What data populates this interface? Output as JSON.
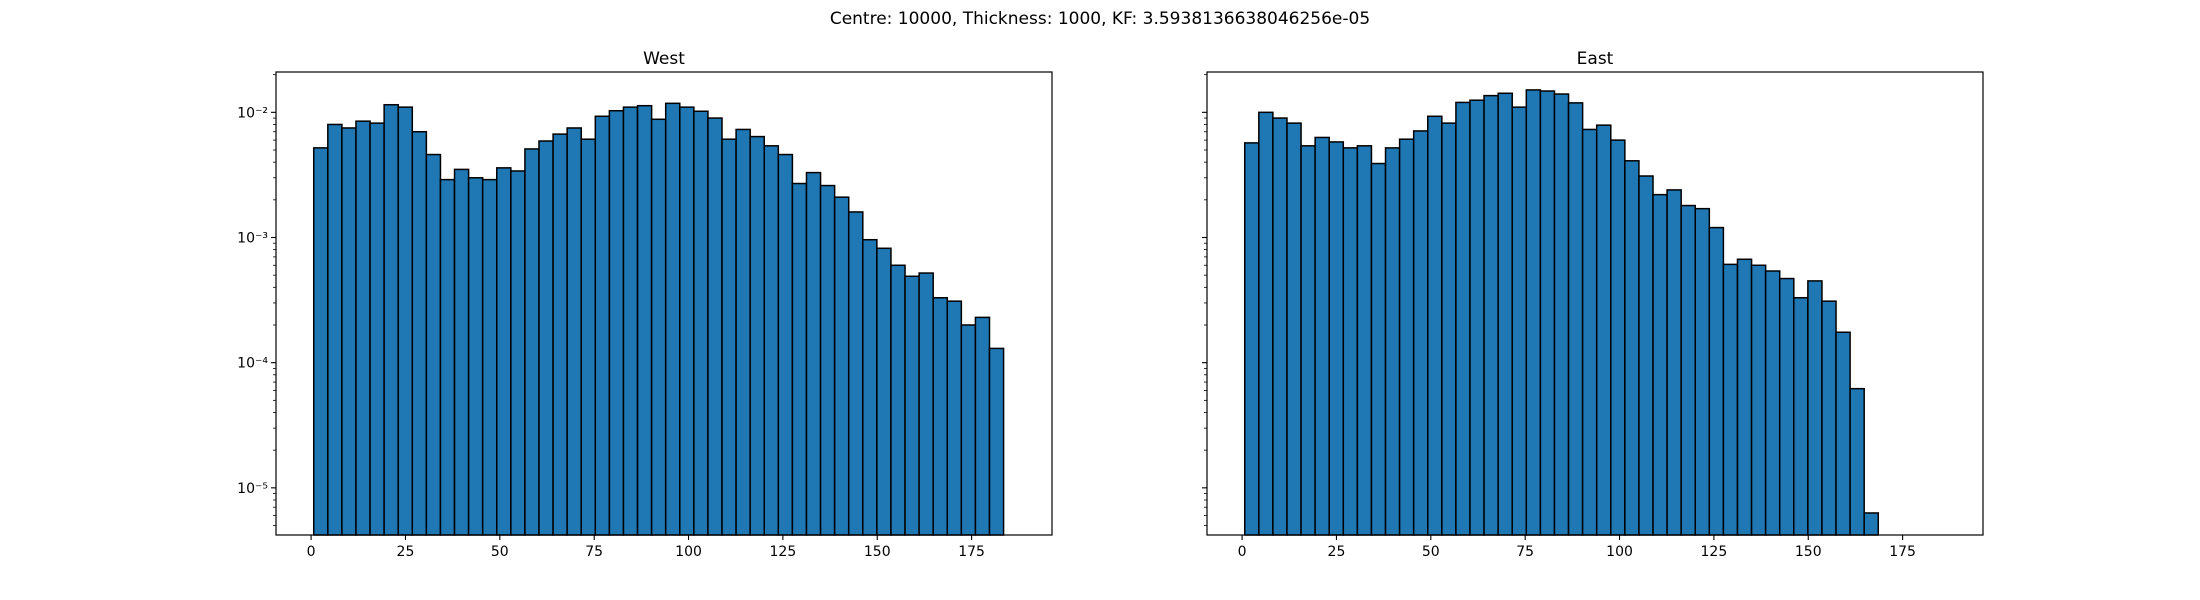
{
  "chart_data": {
    "suptitle": "Centre: 10000, Thickness: 1000, KF: 3.5938136638046256e-05",
    "type": "bar",
    "y_scale": "log",
    "y_major_ticks": [
      1e-05,
      0.0001,
      0.001,
      0.01
    ],
    "y_tick_labels": [
      "10⁻⁵",
      "10⁻⁴",
      "10⁻³",
      "10⁻²"
    ],
    "x_ticks": [
      0,
      25,
      50,
      75,
      100,
      125,
      150,
      175
    ],
    "x_tick_labels": [
      "0",
      "25",
      "50",
      "75",
      "100",
      "125",
      "150",
      "175"
    ],
    "xlim": [
      -9.3,
      196.3
    ],
    "ylim": [
      4.2e-06,
      0.021
    ],
    "bar_color": "#1f77b4",
    "edge_color": "#000000",
    "panels": [
      {
        "title": "West",
        "bin_start": 0.7,
        "bin_width": 3.73,
        "values": [
          0.0052,
          0.008,
          0.0075,
          0.0085,
          0.0082,
          0.0115,
          0.011,
          0.007,
          0.0046,
          0.0029,
          0.0035,
          0.003,
          0.0029,
          0.0036,
          0.0034,
          0.0051,
          0.0059,
          0.0067,
          0.0075,
          0.0061,
          0.0093,
          0.0103,
          0.011,
          0.0113,
          0.0088,
          0.0118,
          0.011,
          0.0102,
          0.009,
          0.0061,
          0.0073,
          0.0064,
          0.0054,
          0.0046,
          0.0027,
          0.0033,
          0.0026,
          0.0021,
          0.0016,
          0.00096,
          0.00082,
          0.0006,
          0.00049,
          0.00052,
          0.00033,
          0.00031,
          0.0002,
          0.00023,
          0.00013
        ]
      },
      {
        "title": "East",
        "bin_start": 0.7,
        "bin_width": 3.73,
        "values": [
          0.0057,
          0.01,
          0.009,
          0.0082,
          0.0054,
          0.0063,
          0.0058,
          0.0052,
          0.0054,
          0.0039,
          0.0052,
          0.0061,
          0.0071,
          0.0093,
          0.0082,
          0.012,
          0.0125,
          0.0136,
          0.0142,
          0.011,
          0.0151,
          0.0148,
          0.014,
          0.0119,
          0.0073,
          0.0079,
          0.006,
          0.0041,
          0.0031,
          0.0022,
          0.0024,
          0.0018,
          0.0017,
          0.0012,
          0.00061,
          0.00067,
          0.0006,
          0.00054,
          0.00047,
          0.00033,
          0.00045,
          0.00031,
          0.000175,
          6.2e-05,
          6.3e-06
        ]
      }
    ]
  }
}
